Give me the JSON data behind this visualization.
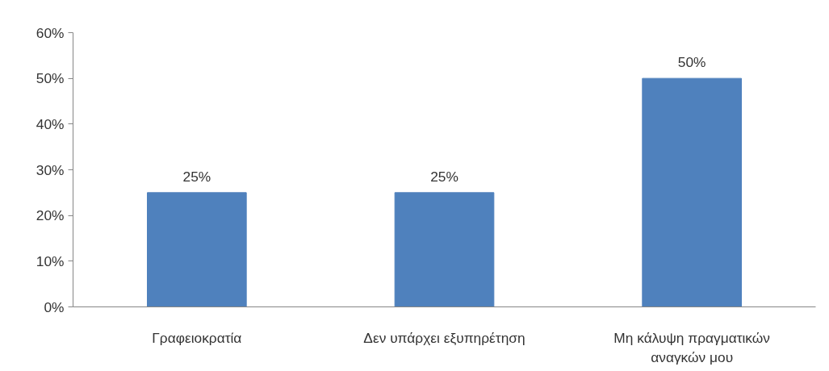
{
  "chart_data": {
    "type": "bar",
    "categories": [
      "Γραφειοκρατία",
      "Δεν υπάρχει εξυπηρέτηση",
      "Μη κάλυψη πραγματικών αναγκών μου"
    ],
    "values": [
      25,
      25,
      50
    ],
    "value_labels": [
      "25%",
      "25%",
      "50%"
    ],
    "color": "#4f81bd",
    "ylim": [
      0,
      60
    ],
    "yticks": [
      {
        "value": 0,
        "label": "0%"
      },
      {
        "value": 10,
        "label": "10%"
      },
      {
        "value": 20,
        "label": "20%"
      },
      {
        "value": 30,
        "label": "30%"
      },
      {
        "value": 40,
        "label": "40%"
      },
      {
        "value": 50,
        "label": "50%"
      },
      {
        "value": 60,
        "label": "60%"
      }
    ],
    "grid": false
  }
}
